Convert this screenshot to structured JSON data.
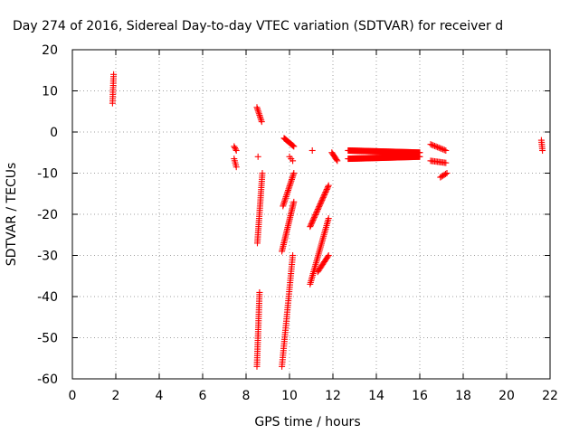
{
  "chart_data": {
    "type": "scatter",
    "title": "Day 274 of 2016, Sidereal Day-to-day VTEC variation (SDTVAR) for receiver d",
    "xlabel": "GPS time / hours",
    "ylabel": "SDTVAR / TECUs",
    "xlim": [
      0,
      22
    ],
    "ylim": [
      -60,
      20
    ],
    "xticks": [
      0,
      2,
      4,
      6,
      8,
      10,
      12,
      14,
      16,
      18,
      20,
      22
    ],
    "yticks": [
      -60,
      -50,
      -40,
      -30,
      -20,
      -10,
      0,
      10,
      20
    ],
    "grid": true,
    "marker": "+",
    "marker_color": "#ff0000",
    "point_groups": [
      {
        "x_start": 1.85,
        "x_end": 1.9,
        "y_start": 7,
        "y_end": 14,
        "n": 14
      },
      {
        "x_start": 7.45,
        "x_end": 7.55,
        "y_start": -3.5,
        "y_end": -4.5,
        "n": 4
      },
      {
        "x_start": 7.45,
        "x_end": 7.55,
        "y_start": -6.5,
        "y_end": -8.5,
        "n": 5
      },
      {
        "x_start": 8.5,
        "x_end": 8.72,
        "y_start": 6,
        "y_end": 2.5,
        "n": 10
      },
      {
        "x_start": 8.55,
        "x_end": 8.55,
        "y_start": -6,
        "y_end": -6,
        "n": 1
      },
      {
        "x_start": 8.52,
        "x_end": 8.75,
        "y_start": -27,
        "y_end": -10,
        "n": 35
      },
      {
        "x_start": 8.5,
        "x_end": 8.62,
        "y_start": -57,
        "y_end": -39,
        "n": 35
      },
      {
        "x_start": 9.75,
        "x_end": 10.2,
        "y_start": -1.5,
        "y_end": -3.5,
        "n": 14
      },
      {
        "x_start": 9.7,
        "x_end": 10.2,
        "y_start": -18,
        "y_end": -10,
        "n": 22
      },
      {
        "x_start": 10.0,
        "x_end": 10.15,
        "y_start": -6,
        "y_end": -7,
        "n": 3
      },
      {
        "x_start": 9.65,
        "x_end": 10.2,
        "y_start": -29,
        "y_end": -17,
        "n": 30
      },
      {
        "x_start": 9.65,
        "x_end": 10.15,
        "y_start": -57,
        "y_end": -30,
        "n": 50
      },
      {
        "x_start": 11.05,
        "x_end": 11.05,
        "y_start": -4.5,
        "y_end": -4.5,
        "n": 1
      },
      {
        "x_start": 10.95,
        "x_end": 11.8,
        "y_start": -23,
        "y_end": -13,
        "n": 32
      },
      {
        "x_start": 10.95,
        "x_end": 11.8,
        "y_start": -37,
        "y_end": -21,
        "n": 38
      },
      {
        "x_start": 11.3,
        "x_end": 11.8,
        "y_start": -34,
        "y_end": -30,
        "n": 14
      },
      {
        "x_start": 11.95,
        "x_end": 12.2,
        "y_start": -5,
        "y_end": -7,
        "n": 8
      },
      {
        "x_start": 12.7,
        "x_end": 16.0,
        "y_start": -4.5,
        "y_end": -5,
        "n": 120
      },
      {
        "x_start": 12.7,
        "x_end": 16.0,
        "y_start": -6.5,
        "y_end": -6,
        "n": 120
      },
      {
        "x_start": 16.5,
        "x_end": 17.2,
        "y_start": -3,
        "y_end": -4.5,
        "n": 12
      },
      {
        "x_start": 16.5,
        "x_end": 17.2,
        "y_start": -7,
        "y_end": -7.5,
        "n": 12
      },
      {
        "x_start": 16.95,
        "x_end": 17.25,
        "y_start": -11,
        "y_end": -10,
        "n": 6
      },
      {
        "x_start": 21.6,
        "x_end": 21.65,
        "y_start": -2,
        "y_end": -4.5,
        "n": 6
      }
    ]
  }
}
